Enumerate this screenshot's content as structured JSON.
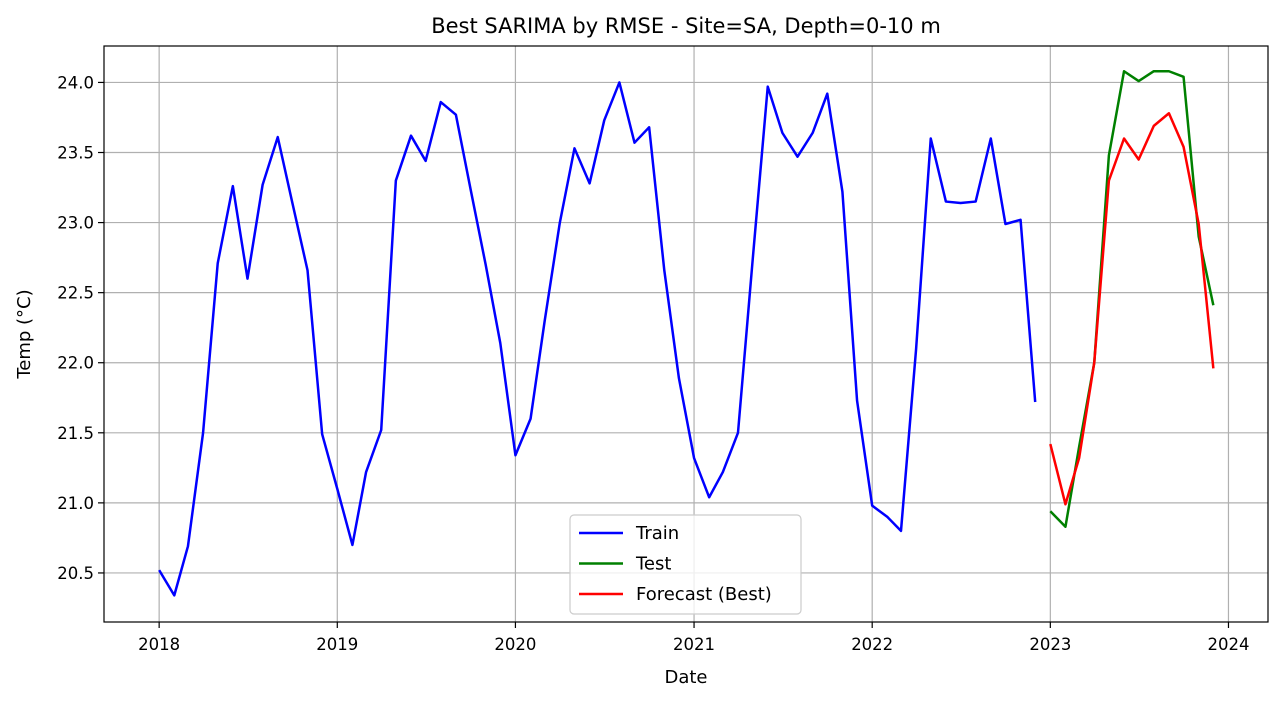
{
  "chart_data": {
    "type": "line",
    "title": "Best SARIMA by RMSE - Site=SA, Depth=0-10 m",
    "xlabel": "Date",
    "ylabel": "Temp (°C)",
    "x_ticks": [
      "2018",
      "2019",
      "2020",
      "2021",
      "2022",
      "2023",
      "2024"
    ],
    "y_ticks": [
      "20.5",
      "21.0",
      "21.5",
      "22.0",
      "22.5",
      "23.0",
      "23.5",
      "24.0"
    ],
    "xlim": [
      "2017-09-10",
      "2024-03-22"
    ],
    "ylim": [
      20.15,
      24.26
    ],
    "grid": true,
    "legend_position": "bottom-center",
    "series": [
      {
        "name": "Train",
        "color": "#0000ff",
        "x": [
          "2018-01",
          "2018-02",
          "2018-03",
          "2018-04",
          "2018-05",
          "2018-06",
          "2018-07",
          "2018-08",
          "2018-09",
          "2018-10",
          "2018-11",
          "2018-12",
          "2019-01",
          "2019-02",
          "2019-03",
          "2019-04",
          "2019-05",
          "2019-06",
          "2019-07",
          "2019-08",
          "2019-09",
          "2019-10",
          "2019-11",
          "2019-12",
          "2020-01",
          "2020-02",
          "2020-03",
          "2020-04",
          "2020-05",
          "2020-06",
          "2020-07",
          "2020-08",
          "2020-09",
          "2020-10",
          "2020-11",
          "2020-12",
          "2021-01",
          "2021-02",
          "2021-03",
          "2021-04",
          "2021-05",
          "2021-06",
          "2021-07",
          "2021-08",
          "2021-09",
          "2021-10",
          "2021-11",
          "2021-12",
          "2022-01",
          "2022-02",
          "2022-03",
          "2022-04",
          "2022-05",
          "2022-06",
          "2022-07",
          "2022-08",
          "2022-09",
          "2022-10",
          "2022-11",
          "2022-12"
        ],
        "values": [
          20.52,
          20.34,
          20.69,
          21.5,
          22.71,
          23.26,
          22.6,
          23.27,
          23.61,
          23.14,
          22.66,
          21.49,
          21.1,
          20.7,
          21.22,
          21.52,
          23.3,
          23.62,
          23.44,
          23.86,
          23.77,
          23.24,
          22.7,
          22.14,
          21.34,
          21.6,
          22.3,
          23.0,
          23.53,
          23.28,
          23.73,
          24.0,
          23.57,
          23.68,
          22.66,
          21.89,
          21.32,
          21.04,
          21.22,
          21.5,
          22.73,
          23.97,
          23.64,
          23.47,
          23.64,
          23.92,
          23.22,
          21.73,
          20.98,
          20.9,
          20.8,
          22.1,
          23.6,
          23.15,
          23.14,
          23.15,
          23.6,
          22.99,
          23.02,
          21.72
        ]
      },
      {
        "name": "Test",
        "color": "#008000",
        "x": [
          "2023-01",
          "2023-02",
          "2023-03",
          "2023-04",
          "2023-05",
          "2023-06",
          "2023-07",
          "2023-08",
          "2023-09",
          "2023-10",
          "2023-11",
          "2023-12"
        ],
        "values": [
          20.94,
          20.83,
          21.4,
          22.0,
          23.48,
          24.08,
          24.01,
          24.08,
          24.08,
          24.04,
          22.9,
          22.41
        ]
      },
      {
        "name": "Forecast (Best)",
        "color": "#ff0000",
        "x": [
          "2023-01",
          "2023-02",
          "2023-03",
          "2023-04",
          "2023-05",
          "2023-06",
          "2023-07",
          "2023-08",
          "2023-09",
          "2023-10",
          "2023-11",
          "2023-12"
        ],
        "values": [
          21.42,
          20.99,
          21.32,
          22.0,
          23.3,
          23.6,
          23.45,
          23.69,
          23.78,
          23.54,
          22.99,
          21.96
        ]
      }
    ]
  }
}
